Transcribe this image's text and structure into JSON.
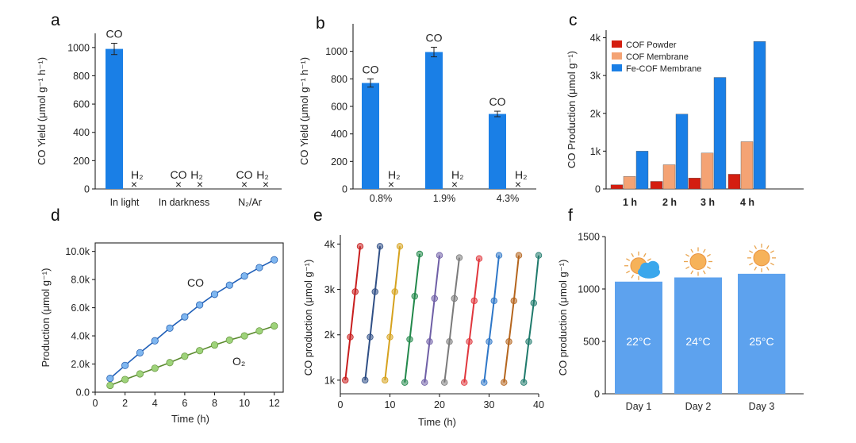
{
  "colors": {
    "blue": "#1a7fe6",
    "lightblue": "#5da2ee",
    "red": "#d41e10",
    "orange": "#f4a374",
    "green": "#9ed37a",
    "cycle": [
      "#c81e1e",
      "#2f4f86",
      "#d6a21e",
      "#22884a",
      "#6f5fa6",
      "#7b7b7b",
      "#e0373d",
      "#2e77c8",
      "#b5651d",
      "#1f7a6c"
    ]
  },
  "chart_data": [
    {
      "panel": "a",
      "type": "bar",
      "ylabel": "CO Yield (μmol g⁻¹ h⁻¹)",
      "ylim": [
        0,
        1100
      ],
      "yticks": [
        0,
        200,
        400,
        600,
        800,
        1000
      ],
      "categories": [
        "In light",
        "In darkness",
        "N₂/Ar"
      ],
      "values_CO": [
        990,
        0,
        0
      ],
      "error_CO": [
        40,
        0,
        0
      ],
      "labels_CO": [
        "CO",
        "CO",
        "CO"
      ],
      "labels_H2": [
        "H₂",
        "H₂",
        "H₂"
      ]
    },
    {
      "panel": "b",
      "type": "bar",
      "ylabel": "CO Yield (μmol g⁻¹ h⁻¹)",
      "ylim": [
        0,
        1200
      ],
      "yticks": [
        0,
        200,
        400,
        600,
        800,
        1000
      ],
      "categories": [
        "0.8%",
        "1.9%",
        "4.3%"
      ],
      "values_CO": [
        770,
        995,
        545
      ],
      "error_CO": [
        30,
        35,
        20
      ],
      "labels_CO": [
        "CO",
        "CO",
        "CO"
      ],
      "labels_H2": [
        "H₂",
        "H₂",
        "H₂"
      ]
    },
    {
      "panel": "c",
      "type": "bar",
      "ylabel": "CO  Production (μmol g⁻¹)",
      "ylim": [
        0,
        4200
      ],
      "yticks": [
        0,
        1000,
        2000,
        3000,
        4000
      ],
      "ytick_labels": [
        "0",
        "1k",
        "2k",
        "3k",
        "4k"
      ],
      "categories": [
        "1 h",
        "2 h",
        "3 h",
        "4 h"
      ],
      "legend": "top-left",
      "series": [
        {
          "name": "COF Powder",
          "values": [
            110,
            200,
            290,
            390
          ]
        },
        {
          "name": "COF Membrane",
          "values": [
            330,
            640,
            950,
            1250
          ]
        },
        {
          "name": "Fe-COF Membrane",
          "values": [
            1000,
            1980,
            2950,
            3900
          ]
        }
      ]
    },
    {
      "panel": "d",
      "type": "scatter",
      "xlabel": "Time (h)",
      "ylabel": "Production (μmol g⁻¹)",
      "xlim": [
        0,
        12.6
      ],
      "ylim": [
        0,
        10600
      ],
      "xticks": [
        0,
        2,
        4,
        6,
        8,
        10,
        12
      ],
      "yticks": [
        0,
        2000,
        4000,
        6000,
        8000,
        10000
      ],
      "ytick_labels": [
        "0.0",
        "2.0k",
        "4.0k",
        "6.0k",
        "8.0k",
        "10.0k"
      ],
      "series": [
        {
          "name": "CO",
          "x": [
            1,
            2,
            3,
            4,
            5,
            6,
            7,
            8,
            9,
            10,
            11,
            12
          ],
          "y": [
            980,
            1900,
            2800,
            3650,
            4550,
            5350,
            6200,
            6950,
            7600,
            8250,
            8850,
            9400
          ]
        },
        {
          "name": "O₂",
          "x": [
            1,
            2,
            3,
            4,
            5,
            6,
            7,
            8,
            9,
            10,
            11,
            12
          ],
          "y": [
            480,
            900,
            1300,
            1700,
            2100,
            2550,
            2950,
            3350,
            3700,
            4000,
            4350,
            4700
          ]
        }
      ]
    },
    {
      "panel": "e",
      "type": "scatter",
      "xlabel": "Time (h)",
      "ylabel": "CO production (μmol g⁻¹)",
      "xlim": [
        0,
        40
      ],
      "ylim": [
        700,
        4200
      ],
      "xticks": [
        0,
        10,
        20,
        30,
        40
      ],
      "yticks": [
        1000,
        2000,
        3000,
        4000
      ],
      "ytick_labels": [
        "1k",
        "2k",
        "3k",
        "4k"
      ],
      "cycles": [
        {
          "x": [
            1,
            2,
            3,
            4
          ],
          "y": [
            1000,
            1950,
            2950,
            3950
          ]
        },
        {
          "x": [
            5,
            6,
            7,
            8
          ],
          "y": [
            1000,
            1950,
            2950,
            3950
          ]
        },
        {
          "x": [
            9,
            10,
            11,
            12
          ],
          "y": [
            1000,
            1950,
            2950,
            3950
          ]
        },
        {
          "x": [
            13,
            14,
            15,
            16
          ],
          "y": [
            950,
            1900,
            2850,
            3780
          ]
        },
        {
          "x": [
            17,
            18,
            19,
            20
          ],
          "y": [
            950,
            1850,
            2800,
            3750
          ]
        },
        {
          "x": [
            21,
            22,
            23,
            24
          ],
          "y": [
            950,
            1850,
            2800,
            3700
          ]
        },
        {
          "x": [
            25,
            26,
            27,
            28
          ],
          "y": [
            950,
            1850,
            2750,
            3680
          ]
        },
        {
          "x": [
            29,
            30,
            31,
            32
          ],
          "y": [
            950,
            1850,
            2750,
            3750
          ]
        },
        {
          "x": [
            33,
            34,
            35,
            36
          ],
          "y": [
            950,
            1850,
            2750,
            3750
          ]
        },
        {
          "x": [
            37,
            38,
            39,
            40
          ],
          "y": [
            950,
            1850,
            2700,
            3750
          ]
        }
      ]
    },
    {
      "panel": "f",
      "type": "bar",
      "ylabel": "CO production (μmol g⁻¹)",
      "ylim": [
        0,
        1500
      ],
      "yticks": [
        0,
        500,
        1000,
        1500
      ],
      "categories": [
        "Day 1",
        "Day 2",
        "Day 3"
      ],
      "values": [
        1070,
        1110,
        1145
      ],
      "bar_labels": [
        "22°C",
        "24°C",
        "25°C"
      ],
      "weather_icons": [
        "sun-cloud-icon",
        "sun-icon",
        "sun-icon"
      ]
    }
  ]
}
